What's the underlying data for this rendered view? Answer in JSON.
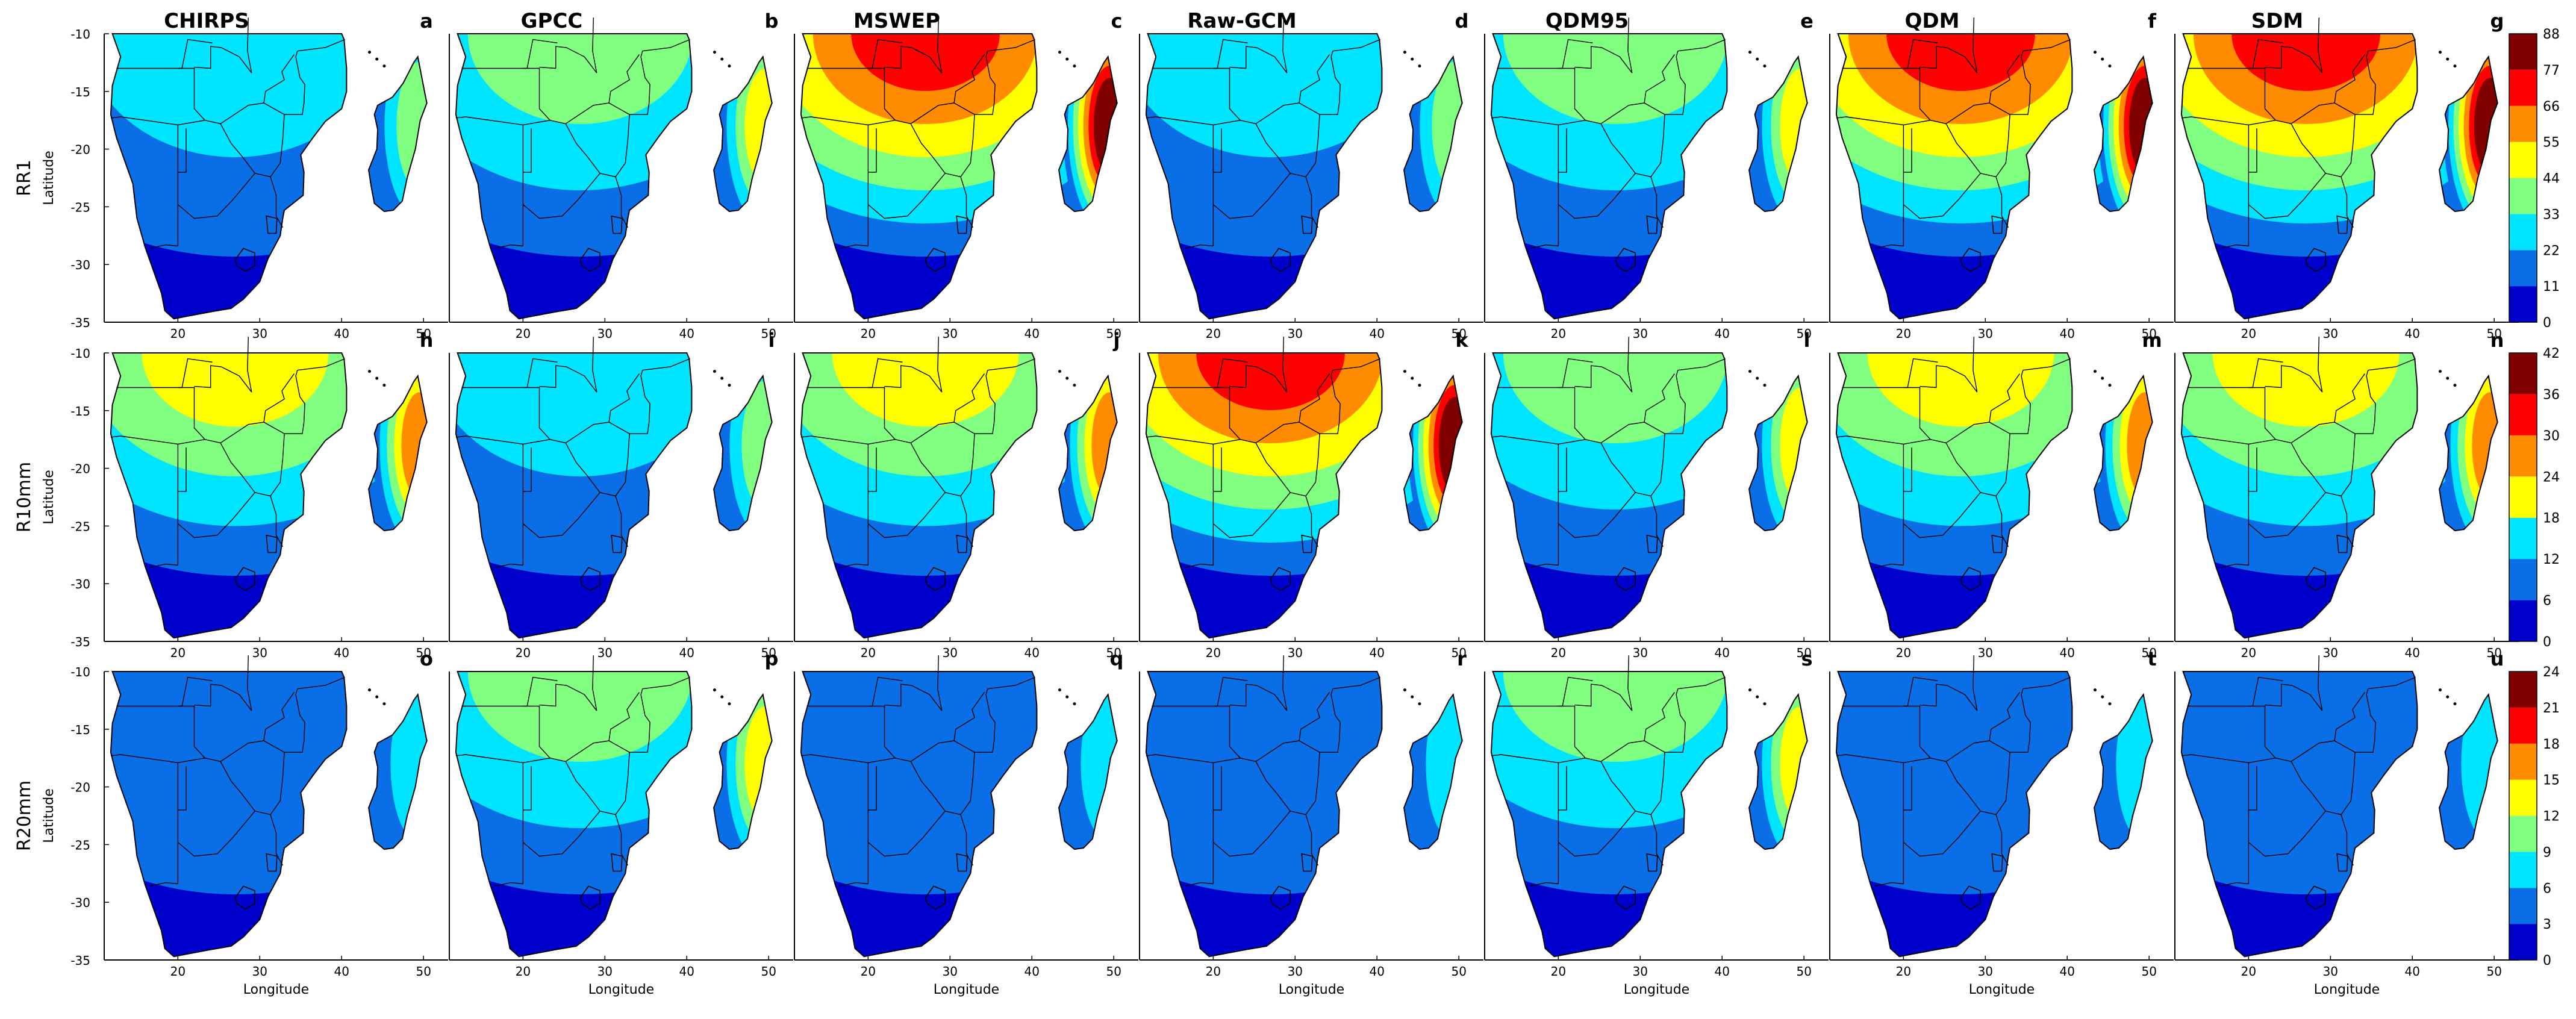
{
  "figure": {
    "model_titles": [
      "CHIRPS",
      "GPCC",
      "MSWEP",
      "Raw-GCM",
      "QDM95",
      "QDM",
      "SDM"
    ],
    "panel_letters": [
      [
        "a",
        "b",
        "c",
        "d",
        "e",
        "f",
        "g"
      ],
      [
        "h",
        "i",
        "j",
        "k",
        "l",
        "m",
        "n"
      ],
      [
        "o",
        "p",
        "q",
        "r",
        "s",
        "t",
        "u"
      ]
    ],
    "indices": [
      {
        "name": "RR1",
        "colorbar_ticks": [
          "0",
          "11",
          "22",
          "33",
          "44",
          "55",
          "66",
          "77",
          "88"
        ],
        "levels": [
          2,
          3,
          6,
          2,
          3,
          6,
          6
        ]
      },
      {
        "name": "R10mm",
        "colorbar_ticks": [
          "0",
          "6",
          "12",
          "18",
          "24",
          "30",
          "36",
          "42"
        ],
        "levels": [
          4,
          2,
          4,
          6,
          3,
          4,
          4
        ]
      },
      {
        "name": "R20mm",
        "colorbar_ticks": [
          "0",
          "3",
          "6",
          "9",
          "12",
          "15",
          "18",
          "21",
          "24"
        ],
        "levels": [
          1,
          3,
          1,
          1,
          3,
          1,
          1
        ]
      }
    ],
    "ylabel": "Latitude",
    "xlabel": "Longitude",
    "lat_ticks": [
      "-10",
      "-15",
      "-20",
      "-25",
      "-30",
      "-35"
    ],
    "lon_ticks": [
      "20",
      "30",
      "40",
      "50"
    ],
    "colormap": [
      "#0000cc",
      "#0a6fe6",
      "#00e5ff",
      "#80ff80",
      "#ffff00",
      "#ff8c00",
      "#ff0000",
      "#800000"
    ],
    "bg_color": "#ffffff"
  }
}
